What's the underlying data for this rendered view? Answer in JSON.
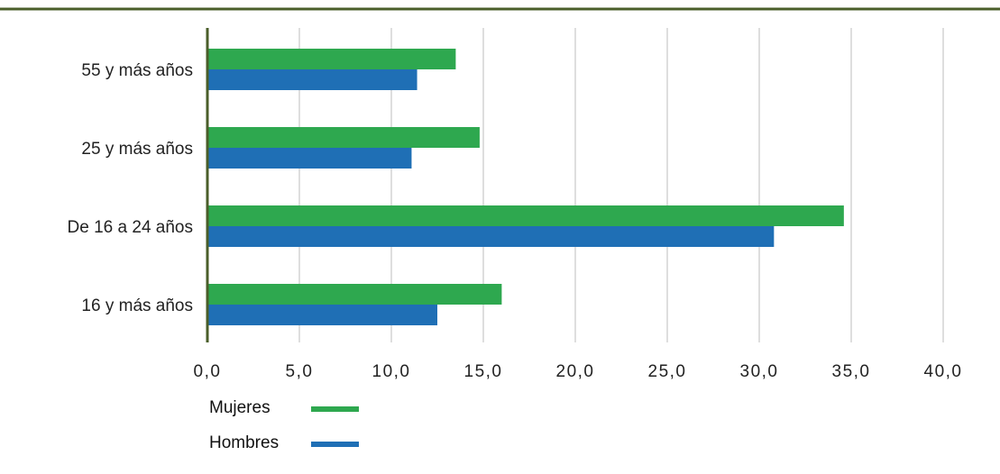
{
  "colors": {
    "top_rule": "#4a5e2a",
    "axis": "#4a5e2a",
    "grid": "#c8c8c8",
    "mujeres": "#2ea84f",
    "hombres": "#1f6fb5"
  },
  "chart_data": {
    "type": "bar",
    "orientation": "horizontal",
    "categories": [
      "55 y más años",
      "25 y más años",
      "De 16 a 24 años",
      "16 y más años"
    ],
    "series": [
      {
        "name": "Mujeres",
        "color": "#2ea84f",
        "values": [
          13.5,
          14.8,
          34.6,
          16.0
        ]
      },
      {
        "name": "Hombres",
        "color": "#1f6fb5",
        "values": [
          11.4,
          11.1,
          30.8,
          12.5
        ]
      }
    ],
    "xlim": [
      0,
      40
    ],
    "xticks": [
      "0,0",
      "5,0",
      "10,0",
      "15,0",
      "20,0",
      "25,0",
      "30,0",
      "35,0",
      "40,0"
    ],
    "grid": true,
    "legend_position": "bottom-left"
  }
}
